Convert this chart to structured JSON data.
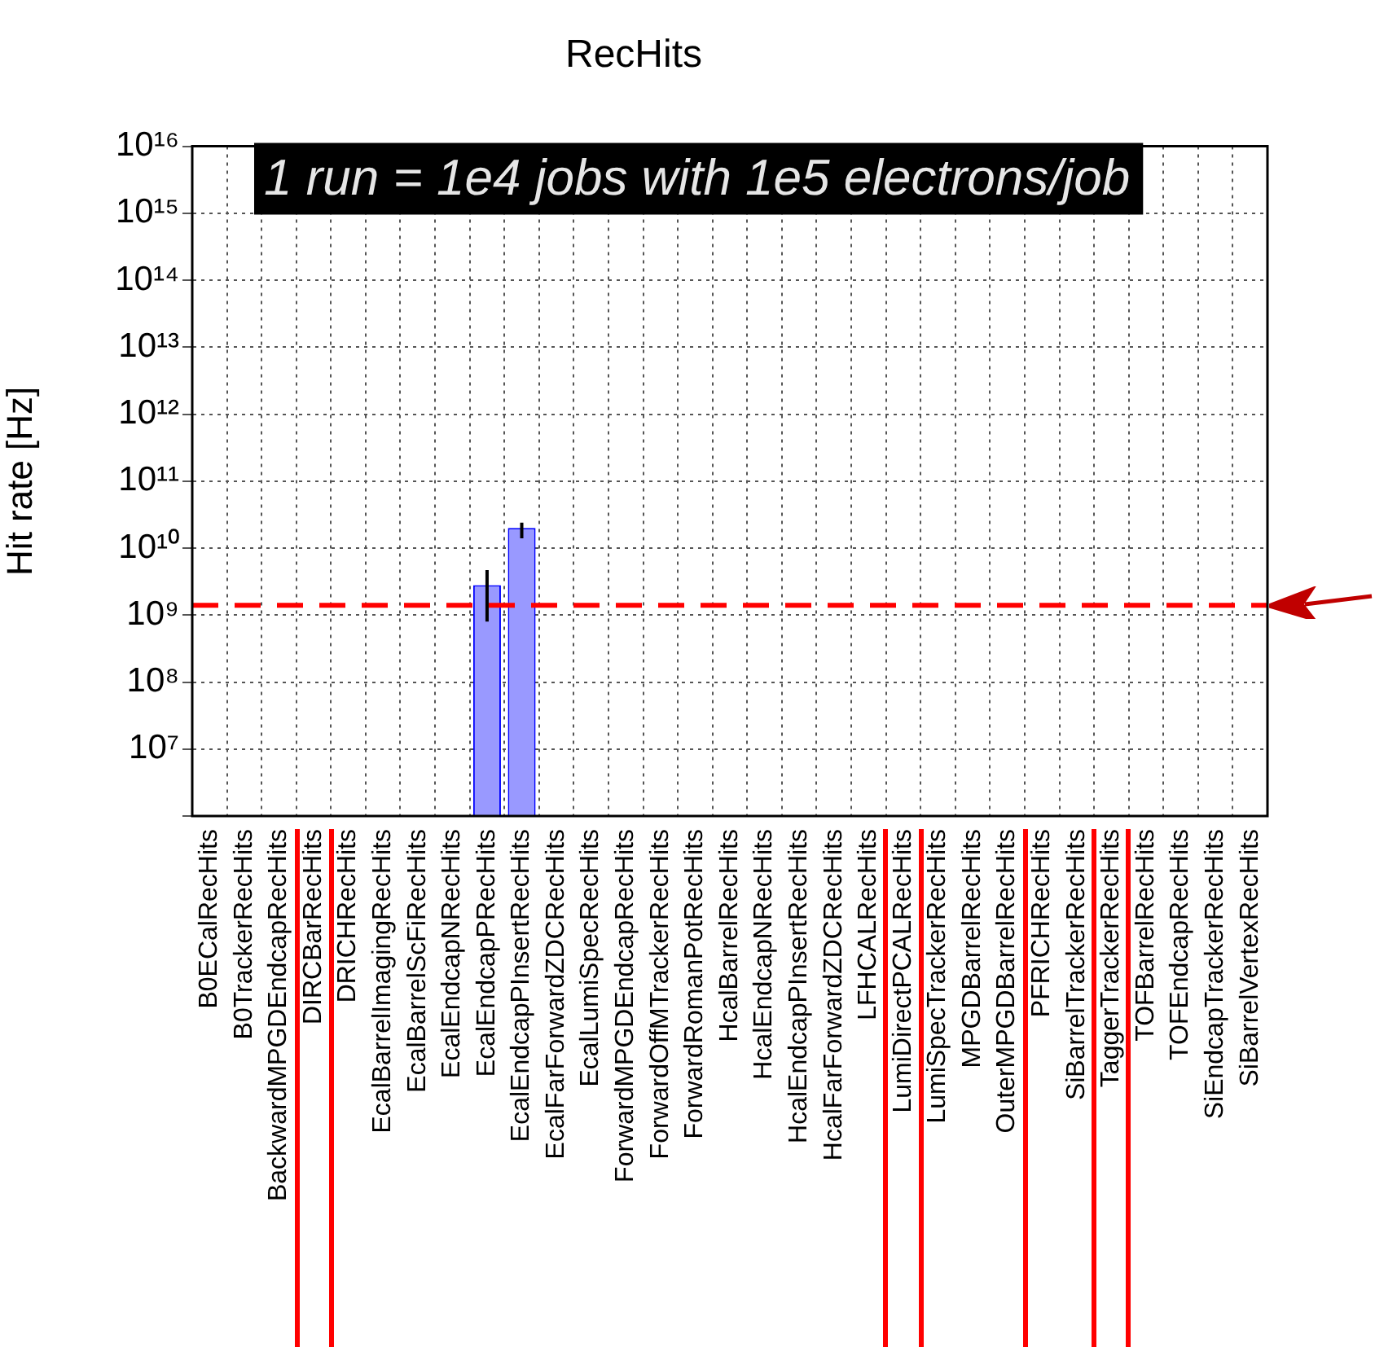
{
  "chart_data": {
    "type": "bar",
    "title": "RecHits",
    "ylabel": "Hit rate [Hz]",
    "categories": [
      "B0ECalRecHits",
      "B0TrackerRecHits",
      "BackwardMPGDEndcapRecHits",
      "DIRCBarRecHits",
      "DRICHRecHits",
      "EcalBarrelImagingRecHits",
      "EcalBarrelScFiRecHits",
      "EcalEndcapNRecHits",
      "EcalEndcapPRecHits",
      "EcalEndcapPInsertRecHits",
      "EcalFarForwardZDCRecHits",
      "EcalLumiSpecRecHits",
      "ForwardMPGDEndcapRecHits",
      "ForwardOffMTrackerRecHits",
      "ForwardRomanPotRecHits",
      "HcalBarrelRecHits",
      "HcalEndcapNRecHits",
      "HcalEndcapPInsertRecHits",
      "HcalFarForwardZDCRecHits",
      "LFHCALRecHits",
      "LumiDirectPCALRecHits",
      "LumiSpecTrackerRecHits",
      "MPGDBarrelRecHits",
      "OuterMPGDBarrelRecHits",
      "PFRICHRecHits",
      "SiBarrelTrackerRecHits",
      "TaggerTrackerRecHits",
      "TOFBarrelRecHits",
      "TOFEndcapRecHits",
      "SiEndcapTrackerRecHits",
      "SiBarrelVertexRecHits"
    ],
    "values": [
      null,
      null,
      null,
      null,
      null,
      null,
      null,
      null,
      2800000000.0,
      20000000000.0,
      null,
      null,
      null,
      null,
      null,
      null,
      null,
      null,
      null,
      null,
      null,
      null,
      null,
      null,
      null,
      null,
      null,
      null,
      null,
      null,
      null
    ],
    "errors": [
      null,
      null,
      null,
      null,
      null,
      null,
      null,
      null,
      [
        800000000.0,
        4700000000.0
      ],
      [
        14000000000.0,
        24000000000.0
      ],
      null,
      null,
      null,
      null,
      null,
      null,
      null,
      null,
      null,
      null,
      null,
      null,
      null,
      null,
      null,
      null,
      null,
      null,
      null,
      null,
      null
    ],
    "color": "#9999ff",
    "log": "y",
    "ylim": [
      1000000.0,
      1e+16
    ],
    "yticks": [
      {
        "value": 1000000.0,
        "label": null
      },
      {
        "value": 10000000.0,
        "label": "10⁷"
      },
      {
        "value": 100000000.0,
        "label": "10⁸"
      },
      {
        "value": 1000000000.0,
        "label": "10⁹"
      },
      {
        "value": 10000000000.0,
        "label": "10¹⁰"
      },
      {
        "value": 100000000000.0,
        "label": "10¹¹"
      },
      {
        "value": 1000000000000.0,
        "label": "10¹²"
      },
      {
        "value": 10000000000000.0,
        "label": "10¹³"
      },
      {
        "value": 100000000000000.0,
        "label": "10¹⁴"
      },
      {
        "value": 1000000000000000.0,
        "label": "10¹⁵"
      },
      {
        "value": 1e+16,
        "label": "10¹⁶"
      }
    ],
    "grid": true,
    "legend": false,
    "ref_lines": [
      {
        "axis": "y",
        "value": 1400000000.0,
        "color": "#ff0000",
        "line_style": "dashed"
      }
    ],
    "annotations": [
      "1 run = 1e4 jobs with 1e5 electrons/job"
    ]
  }
}
